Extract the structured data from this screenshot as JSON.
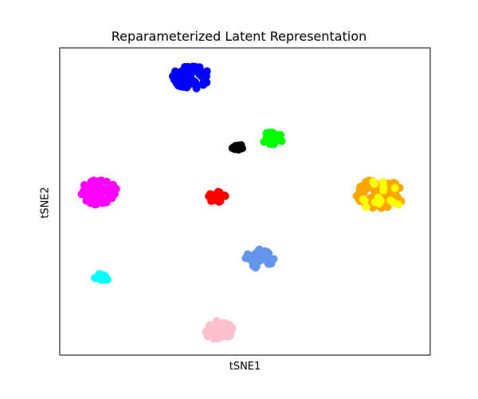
{
  "chart_data": {
    "type": "scatter",
    "title": "Reparameterized Latent Representation",
    "xlabel": "tSNE1",
    "ylabel": "tSNE2",
    "xticks": [],
    "yticks": [],
    "grid": false,
    "legend": false,
    "xlim": [
      0,
      100
    ],
    "ylim": [
      0,
      100
    ],
    "clusters": [
      {
        "color": "#0000ff",
        "center": [
          35.5,
          90.5
        ],
        "spread": [
          6.0,
          4.5
        ],
        "count": 70
      },
      {
        "color": "#000000",
        "center": [
          48.0,
          67.5
        ],
        "spread": [
          1.8,
          1.4
        ],
        "count": 12
      },
      {
        "color": "#00ff00",
        "center": [
          57.5,
          70.5
        ],
        "spread": [
          3.2,
          2.6
        ],
        "count": 25
      },
      {
        "color": "#ff00ff",
        "center": [
          10.5,
          53.0
        ],
        "spread": [
          5.8,
          4.8
        ],
        "count": 65
      },
      {
        "color": "#ff0000",
        "center": [
          42.5,
          51.5
        ],
        "spread": [
          2.8,
          2.2
        ],
        "count": 22
      },
      {
        "color": "#ffa500",
        "center": [
          86.5,
          52.5
        ],
        "spread": [
          7.8,
          5.8
        ],
        "count": 75
      },
      {
        "color": "#ffff00",
        "center": [
          86.0,
          52.0
        ],
        "spread": [
          8.2,
          5.6
        ],
        "count": 16
      },
      {
        "color": "#6495ed",
        "center": [
          54.0,
          31.5
        ],
        "spread": [
          4.5,
          3.8
        ],
        "count": 40
      },
      {
        "color": "#00ffff",
        "center": [
          11.5,
          25.5
        ],
        "spread": [
          2.5,
          2.0
        ],
        "count": 14
      },
      {
        "color": "#ffc0cb",
        "center": [
          43.0,
          8.0
        ],
        "spread": [
          4.5,
          4.0
        ],
        "count": 40
      }
    ]
  }
}
